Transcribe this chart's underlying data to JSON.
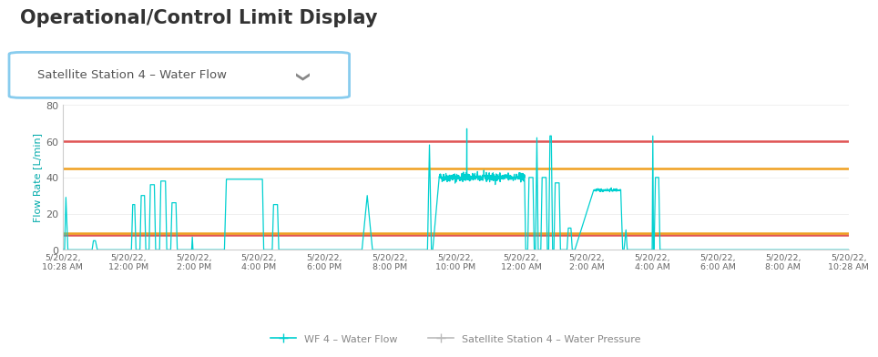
{
  "title": "Operational/Control Limit Display",
  "dropdown_label": "Satellite Station 4 – Water Flow",
  "ylabel": "Flow Rate [L/min]",
  "ylim": [
    0,
    80
  ],
  "yticks": [
    0,
    20,
    40,
    60,
    80
  ],
  "upper_limit_red": 60,
  "lower_limit_red": 8,
  "upper_limit_orange": 45,
  "lower_limit_orange": 9,
  "line_color": "#00d0d0",
  "line_color_pressure": "#bbbbbb",
  "limit_color_red": "#e05555",
  "limit_color_orange": "#f0a020",
  "background_color": "#ffffff",
  "tick_color": "#666666",
  "ylabel_color": "#00aaaa",
  "title_fontsize": 15,
  "title_color": "#333333",
  "tick_labels": [
    "5/20/22,\n10:28 AM",
    "5/20/22,\n12:00 PM",
    "5/20/22,\n2:00 PM",
    "5/20/22,\n4:00 PM",
    "5/20/22,\n6:00 PM",
    "5/20/22,\n8:00 PM",
    "5/20/22,\n10:00 PM",
    "5/20/22,\n12:00 AM",
    "5/20/22,\n2:00 AM",
    "5/20/22,\n4:00 AM",
    "5/20/22,\n6:00 AM",
    "5/20/22,\n8:00 AM",
    "5/20/22,\n10:28 AM"
  ],
  "legend_flow_label": "WF 4 – Water Flow",
  "legend_pressure_label": "Satellite Station 4 – Water Pressure",
  "dropdown_border_color": "#88ccee",
  "dropdown_text_color": "#555555",
  "dropdown_fontsize": 9.5
}
